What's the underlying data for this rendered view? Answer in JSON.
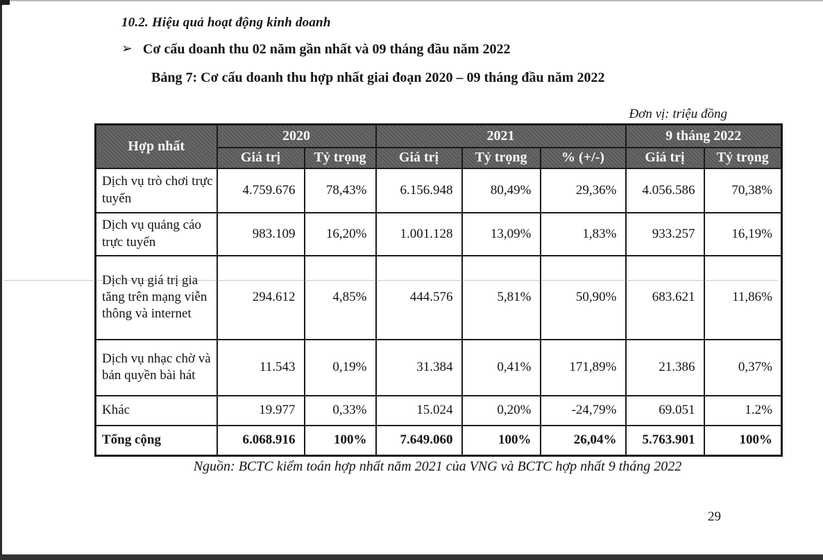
{
  "page": {
    "section_heading": "10.2. Hiệu quả hoạt động kinh doanh",
    "bullet_marker": "➢",
    "bullet_text": "Cơ cấu doanh thu 02 năm gần nhất và 09 tháng đầu năm 2022",
    "table_caption": "Bảng 7: Cơ cấu doanh thu hợp nhất giai đoạn 2020 – 09 tháng đầu năm 2022",
    "unit_note": "Đơn vị: triệu đồng",
    "source_note": "Nguồn: BCTC kiểm toán hợp nhất năm 2021 của VNG và BCTC hợp nhất 9 tháng 2022",
    "page_number": "29"
  },
  "table": {
    "corner_header": "Hợp nhất",
    "col_groups": [
      {
        "label": "2020",
        "span": 2
      },
      {
        "label": "2021",
        "span": 3
      },
      {
        "label": "9 tháng 2022",
        "span": 2
      }
    ],
    "sub_headers": [
      "Giá trị",
      "Tỷ trọng",
      "Giá trị",
      "Tỷ trọng",
      "% (+/-)",
      "Giá trị",
      "Tỷ trọng"
    ],
    "rows": [
      {
        "label": "Dịch vụ trò chơi trực tuyến",
        "values": [
          "4.759.676",
          "78,43%",
          "6.156.948",
          "80,49%",
          "29,36%",
          "4.056.586",
          "70,38%"
        ],
        "bold": false
      },
      {
        "label": "Dịch vụ quảng cáo trực tuyến",
        "values": [
          "983.109",
          "16,20%",
          "1.001.128",
          "13,09%",
          "1,83%",
          "933.257",
          "16,19%"
        ],
        "bold": false
      },
      {
        "label": "Dịch vụ giá trị gia tăng trên mạng viễn thông và internet",
        "values": [
          "294.612",
          "4,85%",
          "444.576",
          "5,81%",
          "50,90%",
          "683.621",
          "11,86%"
        ],
        "bold": false
      },
      {
        "label": "Dịch vụ nhạc chờ và bản quyền bài hát",
        "values": [
          "11.543",
          "0,19%",
          "31.384",
          "0,41%",
          "171,89%",
          "21.386",
          "0,37%"
        ],
        "bold": false
      },
      {
        "label": "Khác",
        "values": [
          "19.977",
          "0,33%",
          "15.024",
          "0,20%",
          "-24,79%",
          "69.051",
          "1.2%"
        ],
        "bold": false
      },
      {
        "label": "Tổng cộng",
        "values": [
          "6.068.916",
          "100%",
          "7.649.060",
          "100%",
          "26,04%",
          "5.763.901",
          "100%"
        ],
        "bold": true
      }
    ],
    "colors": {
      "header_bg": "#5e5e5e",
      "header_text": "#fafafa",
      "border": "#1b1b1b"
    }
  }
}
